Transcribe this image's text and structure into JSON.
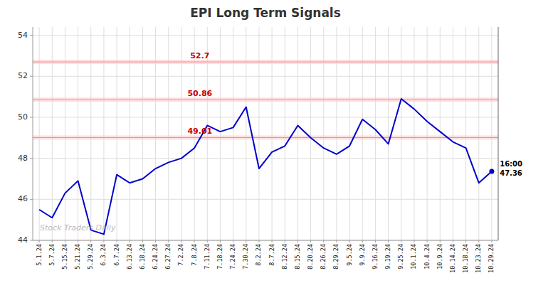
{
  "chart_data": {
    "type": "line",
    "title": "EPI Long Term Signals",
    "categories": [
      "5.1.24",
      "5.7.24",
      "5.15.24",
      "5.21.24",
      "5.29.24",
      "6.3.24",
      "6.7.24",
      "6.13.24",
      "6.18.24",
      "6.24.24",
      "6.27.24",
      "7.2.24",
      "7.8.24",
      "7.11.24",
      "7.18.24",
      "7.24.24",
      "7.30.24",
      "8.2.24",
      "8.7.24",
      "8.12.24",
      "8.15.24",
      "8.20.24",
      "8.26.24",
      "8.29.24",
      "9.5.24",
      "9.9.24",
      "9.16.24",
      "9.19.24",
      "9.25.24",
      "10.1.24",
      "10.4.24",
      "10.9.24",
      "10.14.24",
      "10.18.24",
      "10.23.24",
      "10.29.24"
    ],
    "values": [
      45.5,
      45.1,
      46.3,
      46.9,
      44.5,
      44.3,
      47.2,
      46.8,
      47.0,
      47.5,
      47.8,
      48.0,
      48.5,
      49.6,
      49.3,
      49.5,
      50.5,
      47.5,
      48.3,
      48.6,
      49.6,
      49.0,
      48.5,
      48.2,
      48.6,
      49.9,
      49.4,
      48.7,
      50.9,
      50.4,
      49.8,
      49.3,
      48.8,
      48.5,
      46.8,
      47.36
    ],
    "color": "#0000cc",
    "ylim": [
      44.0,
      54.4
    ],
    "yticks": [
      44,
      46,
      48,
      50,
      52,
      54
    ],
    "grid": true,
    "reference_lines": [
      {
        "value": 52.7,
        "label": "52.7",
        "color": "#cc0000"
      },
      {
        "value": 50.86,
        "label": "50.86",
        "color": "#cc0000"
      },
      {
        "value": 49.01,
        "label": "49.01",
        "color": "#cc0000"
      }
    ],
    "watermark": "Stock Traders Daily",
    "end_annotation": {
      "time": "16:00",
      "value": 47.36
    }
  }
}
